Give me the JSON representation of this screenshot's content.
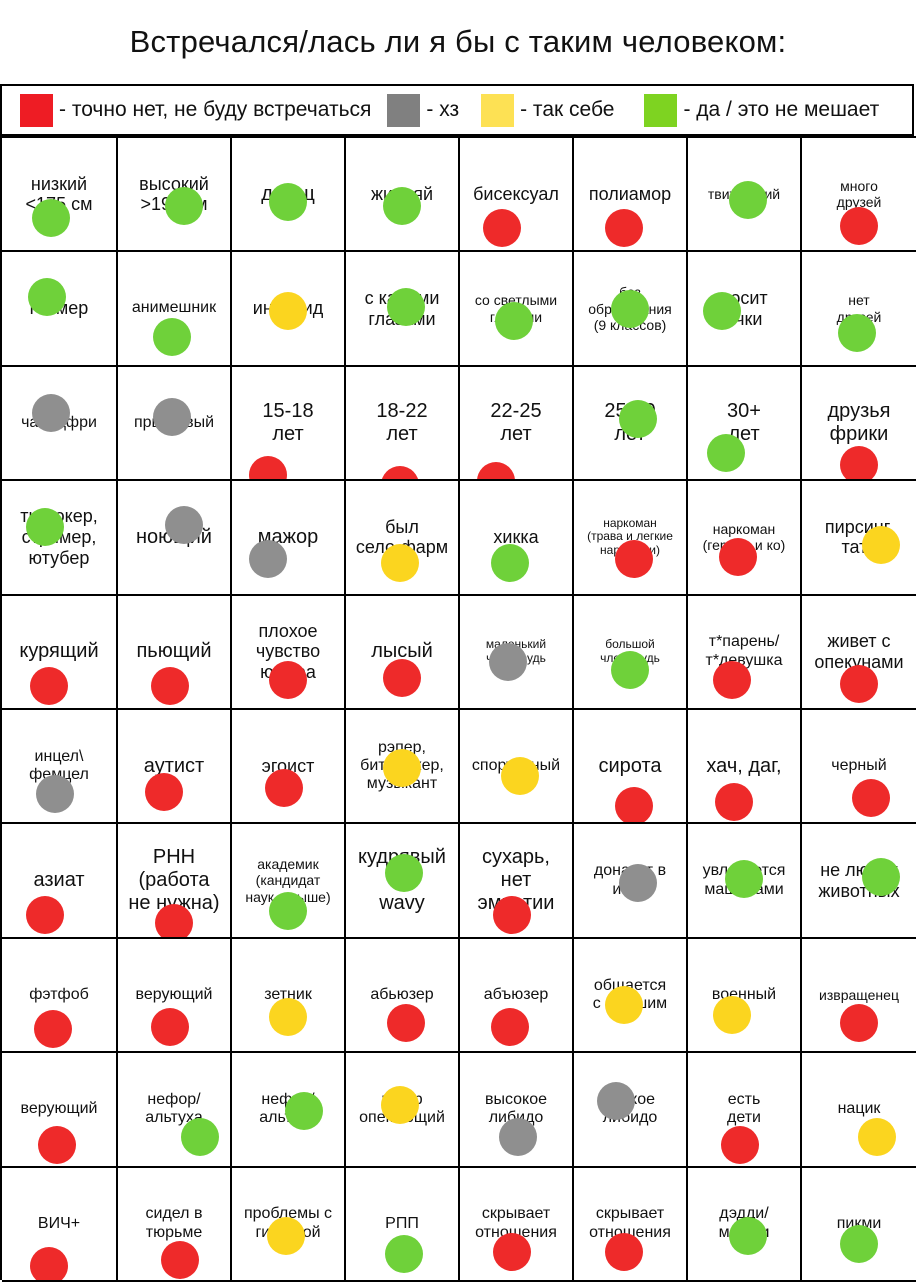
{
  "title": "Встречался/лась ли я бы с таким человеком:",
  "legend": [
    {
      "color": "#ee1c24",
      "text": "- точно нет, не буду встречаться"
    },
    {
      "color": "#808080",
      "text": "- хз"
    },
    {
      "color": "#fde154",
      "text": "- так себе"
    },
    {
      "color": "#7ed321",
      "text": "- да / это не мешает"
    }
  ],
  "cells": [
    {
      "label": "низкий\n<175 см",
      "size": "l",
      "mark": "green"
    },
    {
      "label": "высокий\n>190 см",
      "size": "l",
      "mark": "green"
    },
    {
      "label": "дрыщ",
      "size": "xl",
      "mark": "green"
    },
    {
      "label": "жирдяй",
      "size": "l",
      "mark": "green"
    },
    {
      "label": "бисексуал",
      "size": "l",
      "mark": "red"
    },
    {
      "label": "полиамор",
      "size": "l",
      "mark": "red"
    },
    {
      "label": "твитерский",
      "size": "s",
      "mark": "green"
    },
    {
      "label": "много\nдрузей",
      "size": "s",
      "mark": "red"
    },
    {
      "label": "геймер",
      "size": "l",
      "mark": "green"
    },
    {
      "label": "анимешник",
      "size": "m",
      "mark": "green"
    },
    {
      "label": "инвалид",
      "size": "l",
      "mark": "yellow"
    },
    {
      "label": "с карими\nглазами",
      "size": "l",
      "mark": "green"
    },
    {
      "label": "со светлыми\nглазами",
      "size": "s",
      "mark": "green"
    },
    {
      "label": "без\nобразования\n(9 классов)",
      "size": "s",
      "mark": "green"
    },
    {
      "label": "носит\nочки",
      "size": "l",
      "mark": "green"
    },
    {
      "label": "нет\nдрузей",
      "size": "s",
      "mark": "green"
    },
    {
      "label": "чайлдфри",
      "size": "m",
      "mark": "gray"
    },
    {
      "label": "прыщавый",
      "size": "m",
      "mark": "gray"
    },
    {
      "label": "15-18\nлет",
      "size": "xl",
      "mark": "red"
    },
    {
      "label": "18-22\nлет",
      "size": "xl",
      "mark": "red"
    },
    {
      "label": "22-25\nлет",
      "size": "xl",
      "mark": "red"
    },
    {
      "label": "25-30\nлет",
      "size": "xl",
      "mark": "green"
    },
    {
      "label": "30+\nлет",
      "size": "xl",
      "mark": "green"
    },
    {
      "label": "друзья\nфрики",
      "size": "xl",
      "mark": "red"
    },
    {
      "label": "тиктокер,\nстример,\nютубер",
      "size": "l",
      "mark": "green"
    },
    {
      "label": "ноющий",
      "size": "xl",
      "mark": "gray"
    },
    {
      "label": "мажор",
      "size": "xl",
      "mark": "gray"
    },
    {
      "label": "был\nсело-фарм",
      "size": "l",
      "mark": "yellow"
    },
    {
      "label": "хикка",
      "size": "l",
      "mark": "green"
    },
    {
      "label": "наркоман\n(трава и легкие\nнаркотики)",
      "size": "xs",
      "mark": "red"
    },
    {
      "label": "наркоман\n(героин и ко)",
      "size": "s",
      "mark": "red"
    },
    {
      "label": "пирсинг,\nтату",
      "size": "l",
      "mark": "yellow"
    },
    {
      "label": "курящий",
      "size": "xl",
      "mark": "red"
    },
    {
      "label": "пьющий",
      "size": "xl",
      "mark": "red"
    },
    {
      "label": "плохое\nчувство\nюмора",
      "size": "l",
      "mark": "red"
    },
    {
      "label": "лысый",
      "size": "xl",
      "mark": "red"
    },
    {
      "label": "маленький\nчлен/грудь",
      "size": "xs",
      "mark": "gray"
    },
    {
      "label": "большой\nчлен/грудь",
      "size": "xs",
      "mark": "green"
    },
    {
      "label": "т*парень/\nт*девушка",
      "size": "m",
      "mark": "red"
    },
    {
      "label": "живет с\nопекунами",
      "size": "l",
      "mark": "red"
    },
    {
      "label": "инцел\\\nфемцел",
      "size": "m",
      "mark": "gray"
    },
    {
      "label": "аутист",
      "size": "xl",
      "mark": "red"
    },
    {
      "label": "эгоист",
      "size": "l",
      "mark": "red"
    },
    {
      "label": "рэпер,\nбитмейкер,\nмузыкант",
      "size": "m",
      "mark": "yellow"
    },
    {
      "label": "спортивный",
      "size": "m",
      "mark": "yellow"
    },
    {
      "label": "сирота",
      "size": "xl",
      "mark": "red"
    },
    {
      "label": "хач, даг,",
      "size": "xl",
      "mark": "red"
    },
    {
      "label": "черный",
      "size": "m",
      "mark": "red"
    },
    {
      "label": "азиат",
      "size": "xl",
      "mark": "red"
    },
    {
      "label": "РНН\n(работа\nне нужна)",
      "size": "xl",
      "mark": "red"
    },
    {
      "label": "академик\n(кандидат\nнаук и выше)",
      "size": "s",
      "mark": "green"
    },
    {
      "label": "кудрявый\n\nwavy",
      "size": "xl",
      "mark": "green"
    },
    {
      "label": "сухарь,\nнет\nэмпатии",
      "size": "xl",
      "mark": "red"
    },
    {
      "label": "донатит в\nигры",
      "size": "m",
      "mark": "gray"
    },
    {
      "label": "увлекается\nмашинами",
      "size": "m",
      "mark": "green"
    },
    {
      "label": "не любит\nживотных",
      "size": "l",
      "mark": "green"
    },
    {
      "label": "фэтфоб",
      "size": "m",
      "mark": "red"
    },
    {
      "label": "верующий",
      "size": "m",
      "mark": "red"
    },
    {
      "label": "зетник",
      "size": "m",
      "mark": "yellow"
    },
    {
      "label": "абьюзер",
      "size": "m",
      "mark": "red"
    },
    {
      "label": "абъюзер",
      "size": "m",
      "mark": "red"
    },
    {
      "label": "общается\nс бывшим",
      "size": "m",
      "mark": "yellow"
    },
    {
      "label": "военный",
      "size": "m",
      "mark": "yellow"
    },
    {
      "label": "извращенец",
      "size": "s",
      "mark": "red"
    },
    {
      "label": "верующий",
      "size": "m",
      "mark": "red"
    },
    {
      "label": "нефор/\nальтуха",
      "size": "m",
      "mark": "green"
    },
    {
      "label": "нефор/\nальтуха",
      "size": "m",
      "mark": "green"
    },
    {
      "label": "гипер\nопекающий",
      "size": "m",
      "mark": "yellow"
    },
    {
      "label": "высокое\nлибидо",
      "size": "m",
      "mark": "gray"
    },
    {
      "label": "низкое\nлибидо",
      "size": "m",
      "mark": "gray"
    },
    {
      "label": "есть\nдети",
      "size": "m",
      "mark": "red"
    },
    {
      "label": "нацик",
      "size": "m",
      "mark": "yellow"
    },
    {
      "label": "ВИЧ+",
      "size": "m",
      "mark": "red"
    },
    {
      "label": "сидел в\nтюрьме",
      "size": "m",
      "mark": "red"
    },
    {
      "label": "проблемы с\nгигиеной",
      "size": "m",
      "mark": "yellow"
    },
    {
      "label": "РПП",
      "size": "m",
      "mark": "green"
    },
    {
      "label": "скрывает\nотношения",
      "size": "m",
      "mark": "red"
    },
    {
      "label": "скрывает\nотношения",
      "size": "m",
      "mark": "red"
    },
    {
      "label": "дэдди/\nмамми",
      "size": "m",
      "mark": "green"
    },
    {
      "label": "пикми",
      "size": "m",
      "mark": "green"
    }
  ]
}
